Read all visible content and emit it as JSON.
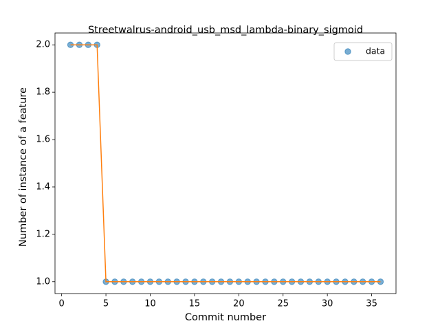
{
  "chart_data": {
    "type": "scatter",
    "title": "Streetwalrus-android_usb_msd_lambda-binary_sigmoid",
    "x_label": "Commit number",
    "y_label": "Number of instance of a feature",
    "x": [
      1,
      2,
      3,
      4,
      5,
      6,
      7,
      8,
      9,
      10,
      11,
      12,
      13,
      14,
      15,
      16,
      17,
      18,
      19,
      20,
      21,
      22,
      23,
      24,
      25,
      26,
      27,
      28,
      29,
      30,
      31,
      32,
      33,
      34,
      35,
      36
    ],
    "series": [
      {
        "name": "data",
        "color": "#1f77b4",
        "values": [
          2,
          2,
          2,
          2,
          1,
          1,
          1,
          1,
          1,
          1,
          1,
          1,
          1,
          1,
          1,
          1,
          1,
          1,
          1,
          1,
          1,
          1,
          1,
          1,
          1,
          1,
          1,
          1,
          1,
          1,
          1,
          1,
          1,
          1,
          1,
          1
        ]
      }
    ],
    "line_color": "#ff7f0e",
    "xlim": [
      -0.75,
      37.75
    ],
    "xticks": [
      0,
      5,
      10,
      15,
      20,
      25,
      30,
      35
    ],
    "ylim": [
      0.95,
      2.05
    ],
    "yticks": [
      {
        "value": 1.0,
        "label": "1.0"
      },
      {
        "value": 1.2,
        "label": "1.2"
      },
      {
        "value": 1.4,
        "label": "1.4"
      },
      {
        "value": 1.6,
        "label": "1.6"
      },
      {
        "value": 1.8,
        "label": "1.8"
      },
      {
        "value": 2.0,
        "label": "2.0"
      }
    ],
    "legend": "upper right"
  }
}
